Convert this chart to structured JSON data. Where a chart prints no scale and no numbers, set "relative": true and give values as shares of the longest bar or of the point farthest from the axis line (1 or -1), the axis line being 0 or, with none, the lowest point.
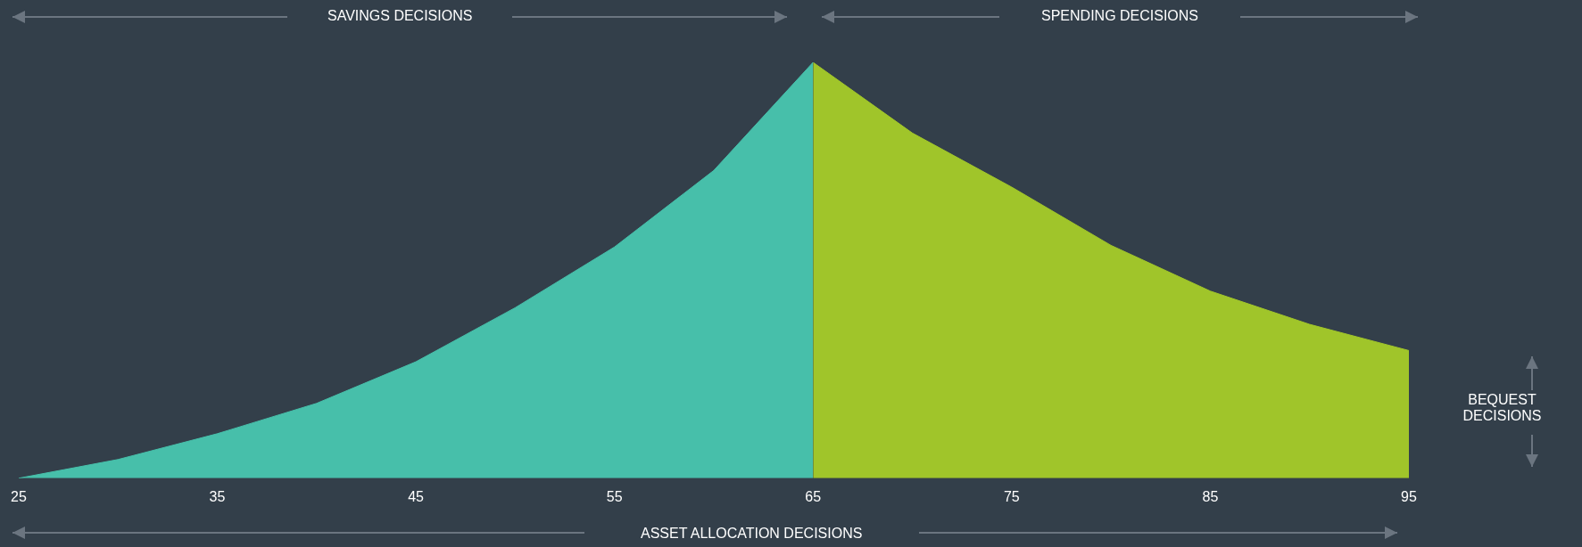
{
  "chart_data": {
    "type": "area",
    "relative": true,
    "tick_labels": "x",
    "grid": false,
    "legend": false,
    "xlim": [
      25,
      95
    ],
    "xticks": [
      25,
      35,
      45,
      55,
      65,
      75,
      85,
      95
    ],
    "series": [
      {
        "color": "#47bfaa",
        "x": [
          25,
          30,
          35,
          40,
          45,
          50,
          55,
          60,
          65
        ],
        "values": [
          0,
          0.045,
          0.107,
          0.18,
          0.28,
          0.41,
          0.556,
          0.74,
          1
        ]
      },
      {
        "color": "#a0c52a",
        "x": [
          65,
          70,
          75,
          80,
          85,
          90,
          95
        ],
        "values": [
          1,
          0.83,
          0.7,
          0.56,
          0.45,
          0.37,
          0.307
        ]
      }
    ],
    "annotations": [
      "SAVINGS DECISIONS",
      "SPENDING DECISIONS",
      "ASSET ALLOCATION DECISIONS",
      "BEQUEST DECISIONS"
    ]
  }
}
